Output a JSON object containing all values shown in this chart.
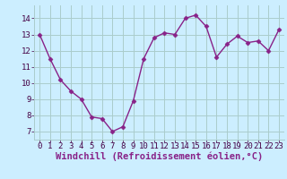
{
  "x": [
    0,
    1,
    2,
    3,
    4,
    5,
    6,
    7,
    8,
    9,
    10,
    11,
    12,
    13,
    14,
    15,
    16,
    17,
    18,
    19,
    20,
    21,
    22,
    23
  ],
  "y": [
    13.0,
    11.5,
    10.2,
    9.5,
    9.0,
    7.9,
    7.8,
    7.0,
    7.3,
    8.9,
    11.5,
    12.8,
    13.1,
    13.0,
    14.0,
    14.2,
    13.5,
    11.6,
    12.4,
    12.9,
    12.5,
    12.6,
    12.0,
    13.3
  ],
  "line_color": "#882288",
  "marker": "D",
  "marker_size": 2.5,
  "bg_color": "#cceeff",
  "grid_color": "#aacccc",
  "xlabel": "Windchill (Refroidissement éolien,°C)",
  "ylim": [
    6.5,
    14.8
  ],
  "xlim": [
    -0.5,
    23.5
  ],
  "yticks": [
    7,
    8,
    9,
    10,
    11,
    12,
    13,
    14
  ],
  "xticks": [
    0,
    1,
    2,
    3,
    4,
    5,
    6,
    7,
    8,
    9,
    10,
    11,
    12,
    13,
    14,
    15,
    16,
    17,
    18,
    19,
    20,
    21,
    22,
    23
  ],
  "tick_label_size": 6.5,
  "xlabel_size": 7.5,
  "line_width": 1.0
}
